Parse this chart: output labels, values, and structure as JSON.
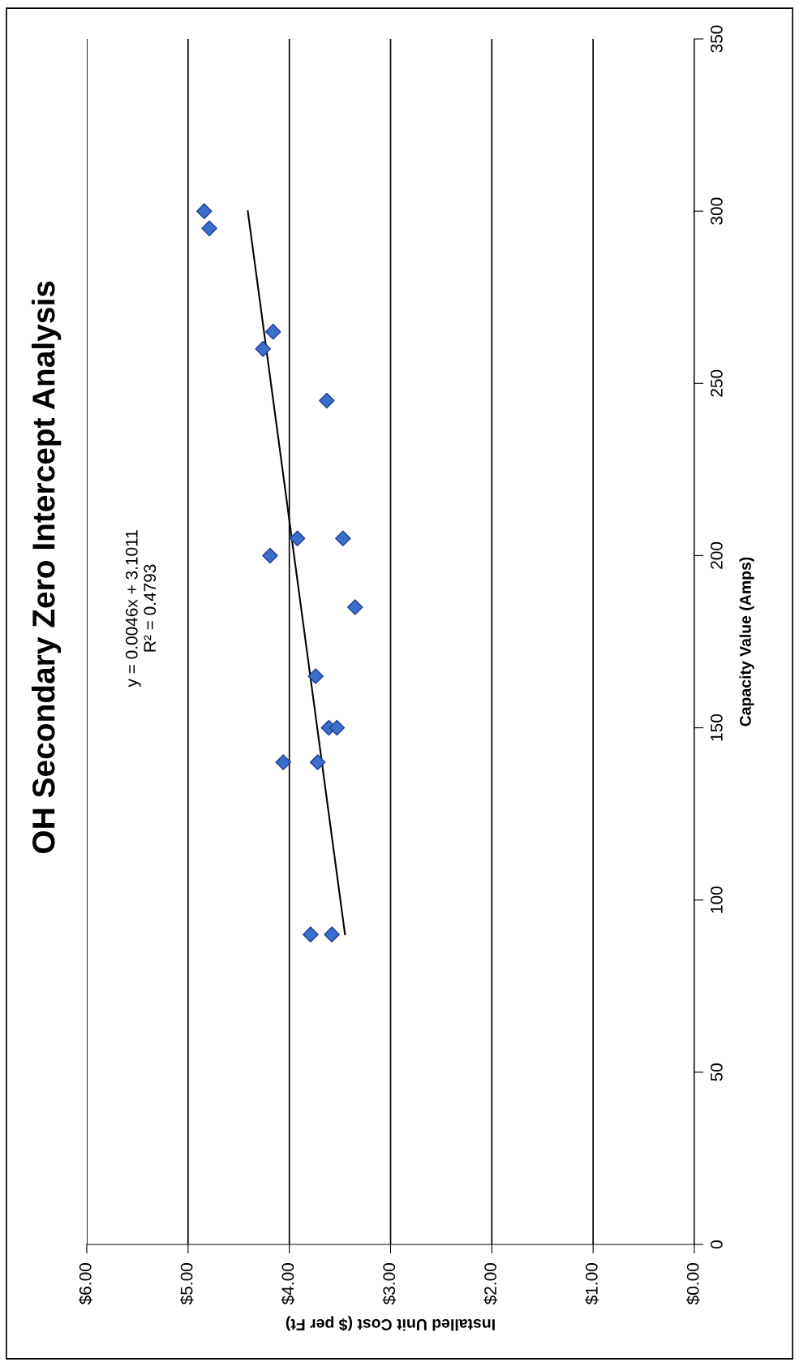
{
  "chart_data": {
    "type": "scatter",
    "title": "OH Secondary Zero Intercept Analysis",
    "xlabel": "Installed Unit Cost ($ per Ft)",
    "ylabel": "Capacity Value (Amps)",
    "annotations": [
      "y = 0.0046x + 3.1011\nR² = 0.4793"
    ],
    "series": [
      {
        "color": "#3b6fcc",
        "x": [
          4.84,
          4.79,
          4.16,
          4.26,
          3.63,
          3.92,
          3.47,
          4.19,
          3.35,
          3.74,
          3.61,
          3.53,
          4.06,
          3.72,
          3.79,
          3.58
        ],
        "values": [
          300,
          295,
          265,
          260,
          245,
          205,
          205,
          200,
          185,
          165,
          150,
          150,
          140,
          140,
          90,
          90
        ]
      },
      {
        "type": "line",
        "color": "#000000",
        "marker": "none",
        "x": [
          3.45,
          4.41
        ],
        "values": [
          90,
          300
        ]
      }
    ],
    "marker": "diamond",
    "xlim": [
      6,
      0
    ],
    "xticks": [
      {
        "value": 0,
        "label": "$0.00"
      },
      {
        "value": 1,
        "label": "$1.00"
      },
      {
        "value": 2,
        "label": "$2.00"
      },
      {
        "value": 3,
        "label": "$3.00"
      },
      {
        "value": 4,
        "label": "$4.00"
      },
      {
        "value": 5,
        "label": "$5.00"
      },
      {
        "value": 6,
        "label": "$6.00"
      }
    ],
    "ylim": [
      0,
      350
    ],
    "yticks": [
      0,
      50,
      100,
      150,
      200,
      250,
      300,
      350
    ],
    "grid": "x"
  }
}
